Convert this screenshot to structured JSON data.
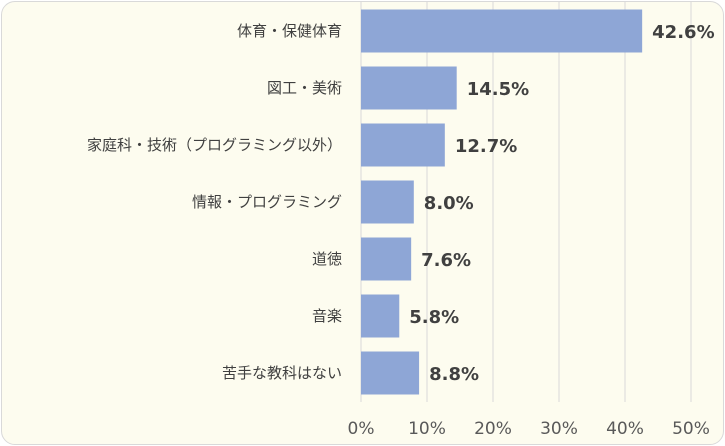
{
  "chart_data": {
    "type": "bar",
    "orientation": "horizontal",
    "categories": [
      "体育・保健体育",
      "図工・美術",
      "家庭科・技術（プログラミング以外）",
      "情報・プログラミング",
      "道徳",
      "音楽",
      "苦手な教科はない"
    ],
    "values": [
      42.6,
      14.5,
      12.7,
      8.0,
      7.6,
      5.8,
      8.8
    ],
    "value_labels": [
      "42.6%",
      "14.5%",
      "12.7%",
      "8.0%",
      "7.6%",
      "5.8%",
      "8.8%"
    ],
    "xlim": [
      0,
      50
    ],
    "ticks": [
      0,
      10,
      20,
      30,
      40,
      50
    ],
    "tick_labels": [
      "0%",
      "10%",
      "20%",
      "30%",
      "40%",
      "50%"
    ],
    "grid": "vertical",
    "colors": {
      "bar": "#8ea6d6",
      "grid": "#d9d9d9",
      "background": "#fdfcef",
      "text": "#404040"
    }
  }
}
